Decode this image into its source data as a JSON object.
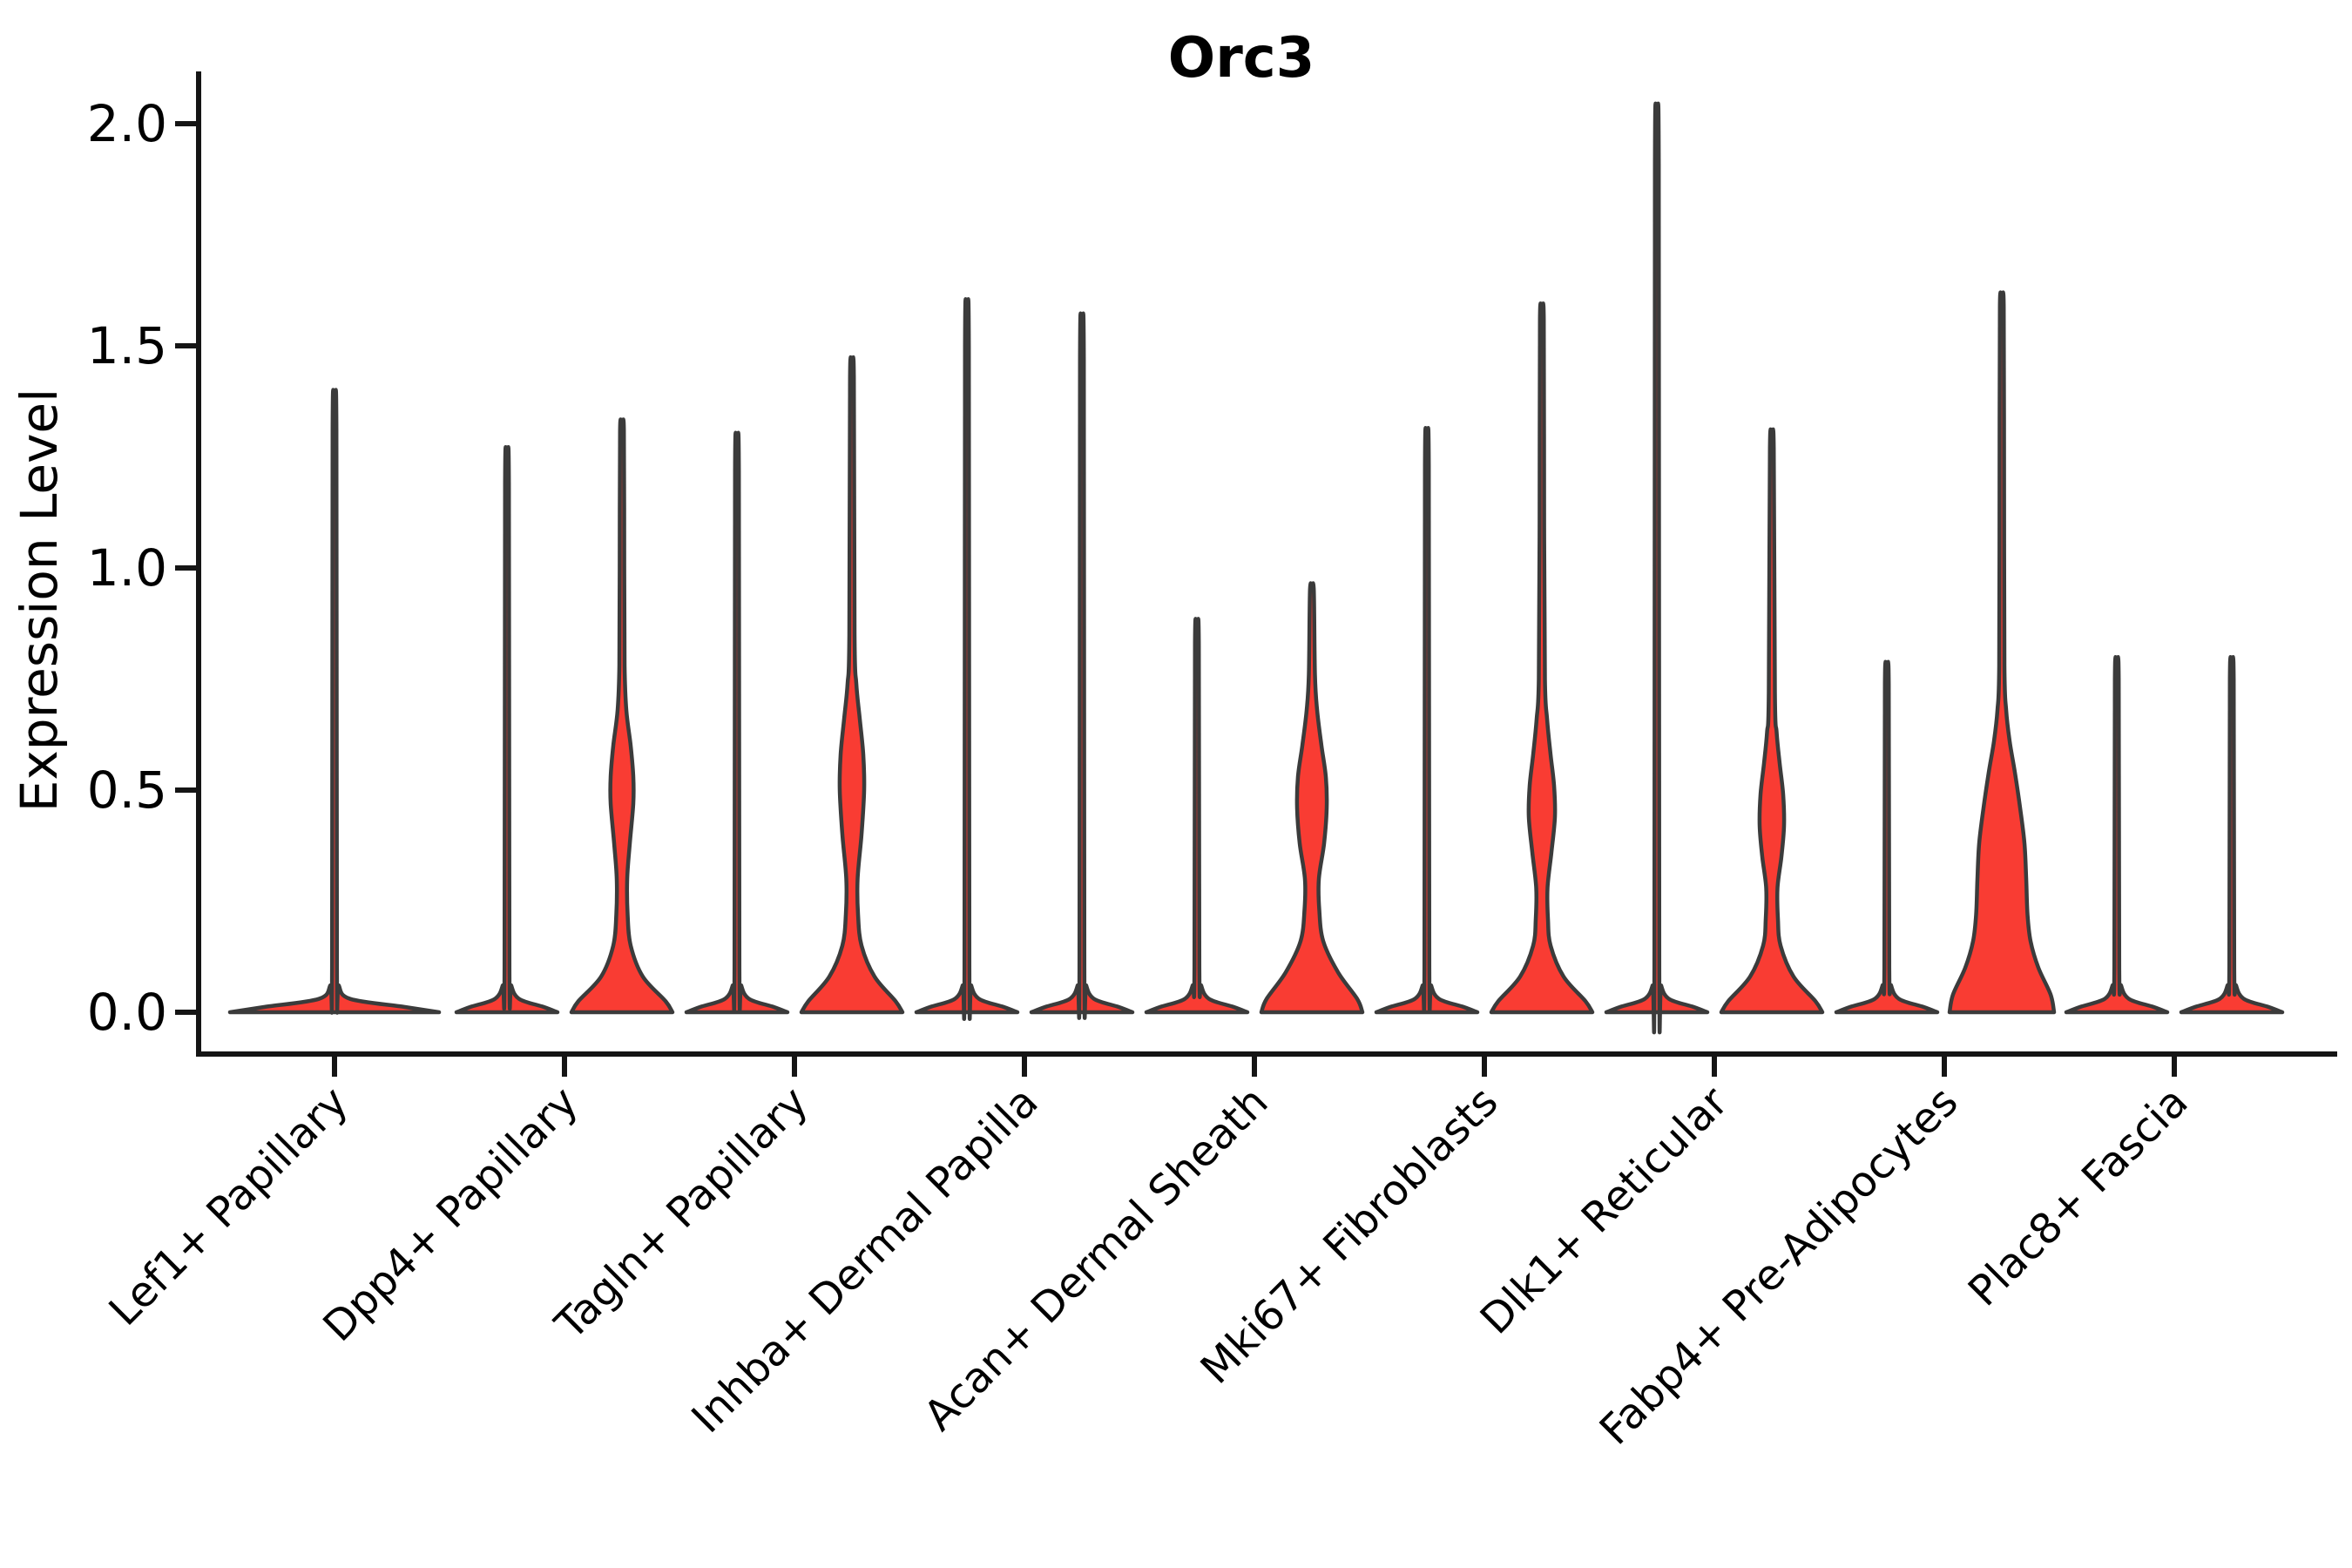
{
  "title": "Orc3",
  "ylabel": "Expression Level",
  "colors": {
    "fill": "#f93c33",
    "outline": "#3b3b3b",
    "axis": "#151515",
    "text": "#000000"
  },
  "chart_data": {
    "type": "violin",
    "title": "Orc3",
    "xlabel": "",
    "ylabel": "Expression Level",
    "ylim": [
      0,
      2
    ],
    "grid": false,
    "legend": "none",
    "yticks": {
      "labels": [
        "0.0",
        "0.5",
        "1.0",
        "1.5",
        "2.0"
      ],
      "values": [
        0,
        0.5,
        1.0,
        1.5,
        2.0
      ]
    },
    "categories": [
      {
        "name": "Lef1+ Papillary",
        "violins": [
          {
            "side": "center",
            "max": 1.31,
            "profile": [
              [
                0,
                120
              ],
              [
                0.012,
                80
              ],
              [
                0.03,
                18
              ],
              [
                0.06,
                5
              ],
              [
                0.1,
                2.8
              ],
              [
                1.31,
                2.2
              ]
            ]
          }
        ]
      },
      {
        "name": "Dpp4+ Papillary",
        "violins": [
          {
            "side": "left",
            "max": 1.19,
            "profile": [
              [
                0,
                58
              ],
              [
                0.012,
                42
              ],
              [
                0.03,
                14
              ],
              [
                0.06,
                5
              ],
              [
                0.1,
                2.8
              ],
              [
                1.19,
                2.2
              ]
            ]
          },
          {
            "side": "right",
            "max": 1.31,
            "profile": [
              [
                0,
                58
              ],
              [
                0.025,
                50
              ],
              [
                0.08,
                24
              ],
              [
                0.15,
                10
              ],
              [
                0.22,
                6.5
              ],
              [
                0.3,
                6
              ],
              [
                0.38,
                9
              ],
              [
                0.47,
                13
              ],
              [
                0.53,
                13
              ],
              [
                0.6,
                10
              ],
              [
                0.68,
                5
              ],
              [
                0.78,
                3
              ],
              [
                1.0,
                2.6
              ],
              [
                1.31,
                2.2
              ]
            ]
          }
        ]
      },
      {
        "name": "Tagln+ Papillary",
        "violins": [
          {
            "side": "left",
            "max": 1.22,
            "profile": [
              [
                0,
                58
              ],
              [
                0.012,
                42
              ],
              [
                0.03,
                14
              ],
              [
                0.06,
                5
              ],
              [
                0.1,
                2.8
              ],
              [
                1.22,
                2.2
              ]
            ]
          },
          {
            "side": "right",
            "max": 1.43,
            "profile": [
              [
                0,
                58
              ],
              [
                0.025,
                50
              ],
              [
                0.08,
                26
              ],
              [
                0.15,
                11
              ],
              [
                0.22,
                7
              ],
              [
                0.3,
                6.5
              ],
              [
                0.4,
                11
              ],
              [
                0.5,
                14
              ],
              [
                0.58,
                13
              ],
              [
                0.66,
                9
              ],
              [
                0.74,
                5
              ],
              [
                0.85,
                3
              ],
              [
                1.43,
                2.2
              ]
            ]
          }
        ]
      },
      {
        "name": "Inhba+ Dermal Papilla",
        "violins": [
          {
            "side": "left",
            "max": 1.5,
            "profile": [
              [
                0,
                58
              ],
              [
                0.012,
                42
              ],
              [
                0.03,
                14
              ],
              [
                0.06,
                5
              ],
              [
                0.1,
                2.8
              ],
              [
                1.5,
                2.2
              ]
            ]
          },
          {
            "side": "right",
            "max": 1.47,
            "profile": [
              [
                0,
                58
              ],
              [
                0.012,
                42
              ],
              [
                0.03,
                14
              ],
              [
                0.06,
                5
              ],
              [
                0.1,
                2.8
              ],
              [
                1.47,
                2.2
              ]
            ]
          }
        ]
      },
      {
        "name": "Acan+ Dermal Sheath",
        "violins": [
          {
            "side": "left",
            "max": 0.83,
            "profile": [
              [
                0,
                58
              ],
              [
                0.012,
                42
              ],
              [
                0.03,
                14
              ],
              [
                0.06,
                5
              ],
              [
                0.1,
                2.8
              ],
              [
                0.83,
                2.2
              ]
            ]
          },
          {
            "side": "right",
            "max": 0.95,
            "profile": [
              [
                0,
                58
              ],
              [
                0.03,
                52
              ],
              [
                0.09,
                30
              ],
              [
                0.16,
                13
              ],
              [
                0.23,
                8.5
              ],
              [
                0.3,
                8
              ],
              [
                0.38,
                14
              ],
              [
                0.46,
                17
              ],
              [
                0.53,
                16
              ],
              [
                0.6,
                11
              ],
              [
                0.68,
                6
              ],
              [
                0.76,
                3.5
              ],
              [
                0.95,
                2.2
              ]
            ]
          }
        ]
      },
      {
        "name": "Mki67+ Fibroblasts",
        "violins": [
          {
            "side": "left",
            "max": 1.23,
            "profile": [
              [
                0,
                58
              ],
              [
                0.012,
                42
              ],
              [
                0.03,
                14
              ],
              [
                0.06,
                5
              ],
              [
                0.1,
                2.8
              ],
              [
                1.23,
                2.2
              ]
            ]
          },
          {
            "side": "right",
            "max": 1.56,
            "profile": [
              [
                0,
                58
              ],
              [
                0.025,
                50
              ],
              [
                0.08,
                25
              ],
              [
                0.15,
                10
              ],
              [
                0.21,
                7
              ],
              [
                0.28,
                6.5
              ],
              [
                0.36,
                11
              ],
              [
                0.44,
                15
              ],
              [
                0.51,
                14
              ],
              [
                0.58,
                10
              ],
              [
                0.66,
                6
              ],
              [
                0.75,
                3.5
              ],
              [
                1.1,
                2.6
              ],
              [
                1.56,
                2.2
              ]
            ]
          }
        ]
      },
      {
        "name": "Dlk1+ Reticular",
        "violins": [
          {
            "side": "left",
            "max": 1.91,
            "profile": [
              [
                0,
                58
              ],
              [
                0.012,
                42
              ],
              [
                0.03,
                14
              ],
              [
                0.06,
                5
              ],
              [
                0.1,
                2.8
              ],
              [
                1.91,
                2.2
              ]
            ]
          },
          {
            "side": "right",
            "max": 1.27,
            "profile": [
              [
                0,
                58
              ],
              [
                0.025,
                50
              ],
              [
                0.08,
                25
              ],
              [
                0.15,
                10
              ],
              [
                0.21,
                7
              ],
              [
                0.28,
                6.5
              ],
              [
                0.35,
                11
              ],
              [
                0.42,
                14
              ],
              [
                0.49,
                13
              ],
              [
                0.56,
                9
              ],
              [
                0.63,
                5.5
              ],
              [
                0.72,
                3.5
              ],
              [
                1.27,
                2.2
              ]
            ]
          }
        ]
      },
      {
        "name": "Fabp4+ Pre-Adipocytes",
        "violins": [
          {
            "side": "left",
            "max": 0.74,
            "profile": [
              [
                0,
                58
              ],
              [
                0.012,
                42
              ],
              [
                0.03,
                14
              ],
              [
                0.06,
                5
              ],
              [
                0.1,
                2.8
              ],
              [
                0.74,
                2.2
              ]
            ]
          },
          {
            "side": "right",
            "max": 1.59,
            "profile": [
              [
                0,
                60
              ],
              [
                0.04,
                56
              ],
              [
                0.1,
                42
              ],
              [
                0.16,
                33
              ],
              [
                0.22,
                29.5
              ],
              [
                0.3,
                28
              ],
              [
                0.38,
                26
              ],
              [
                0.46,
                21
              ],
              [
                0.54,
                15
              ],
              [
                0.61,
                9
              ],
              [
                0.68,
                5
              ],
              [
                0.78,
                3
              ],
              [
                1.2,
                2.6
              ],
              [
                1.59,
                2.2
              ]
            ]
          }
        ]
      },
      {
        "name": "Plac8+ Fascia",
        "violins": [
          {
            "side": "left",
            "max": 0.75,
            "profile": [
              [
                0,
                58
              ],
              [
                0.012,
                42
              ],
              [
                0.03,
                14
              ],
              [
                0.06,
                5
              ],
              [
                0.1,
                2.8
              ],
              [
                0.75,
                2.2
              ]
            ]
          },
          {
            "side": "right",
            "max": 0.75,
            "profile": [
              [
                0,
                58
              ],
              [
                0.012,
                42
              ],
              [
                0.03,
                14
              ],
              [
                0.06,
                5
              ],
              [
                0.1,
                2.8
              ],
              [
                0.75,
                2.2
              ]
            ]
          }
        ]
      }
    ]
  }
}
